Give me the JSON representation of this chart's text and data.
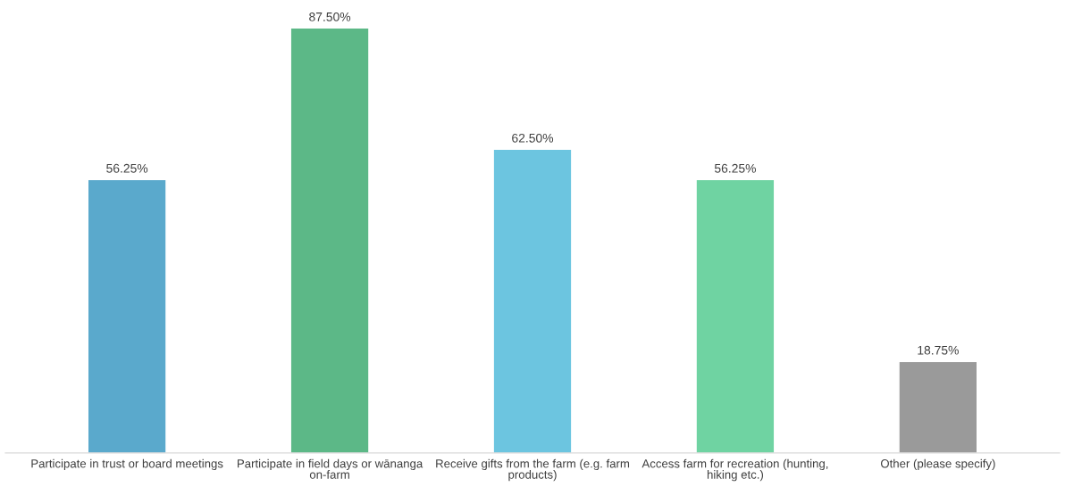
{
  "chart_data": {
    "type": "bar",
    "categories": [
      "Participate in trust or board meetings",
      "Participate in field days or wānanga\non-farm",
      "Receive gifts from the farm (e.g. farm\nproducts)",
      "Access farm for recreation (hunting,\nhiking etc.)",
      "Other (please specify)"
    ],
    "values": [
      56.25,
      87.5,
      62.5,
      56.25,
      18.75
    ],
    "colors": [
      "#5aa9cc",
      "#5cb887",
      "#6cc5e0",
      "#6fd3a2",
      "#9a9a9a"
    ],
    "value_labels": [
      "56.25%",
      "87.50%",
      "62.50%",
      "56.25%",
      "18.75%"
    ],
    "data_labels": false
  }
}
